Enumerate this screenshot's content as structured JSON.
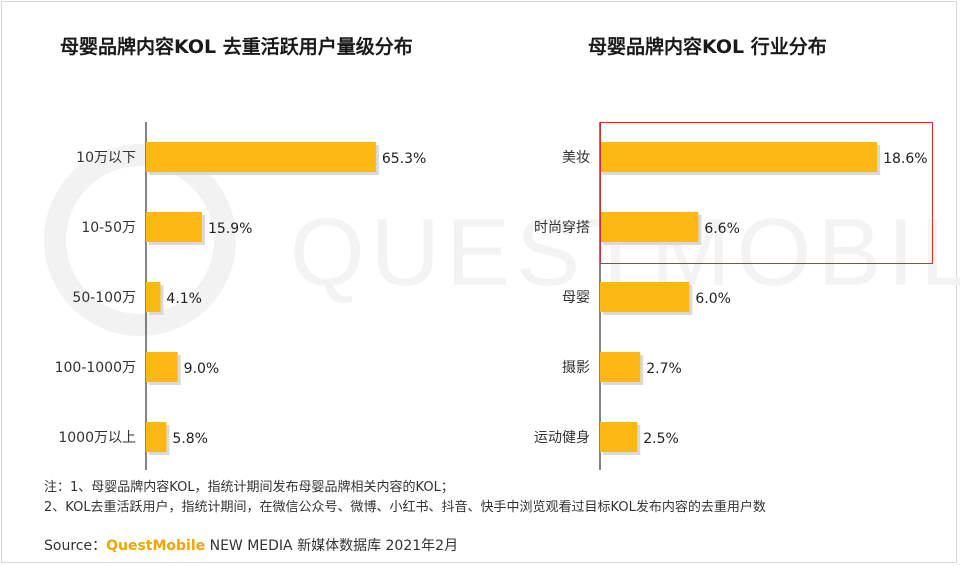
{
  "watermark": "QUESTMOBILE",
  "colors": {
    "bar": "#FDB813",
    "bar_shadow": "#d9d9d9",
    "highlight": "#d62c2c",
    "brand": "#f4a300"
  },
  "chart_data": [
    {
      "type": "bar",
      "orientation": "horizontal",
      "title": "母婴品牌内容KOL 去重活跃用户量级分布",
      "categories": [
        "10万以下",
        "10-50万",
        "50-100万",
        "100-1000万",
        "1000万以上"
      ],
      "values": [
        65.3,
        15.9,
        4.1,
        9.0,
        5.8
      ],
      "labels": [
        "65.3%",
        "15.9%",
        "4.1%",
        "9.0%",
        "5.8%"
      ],
      "unit": "%"
    },
    {
      "type": "bar",
      "orientation": "horizontal",
      "title": "母婴品牌内容KOL 行业分布",
      "categories": [
        "美妆",
        "时尚穿搭",
        "母婴",
        "摄影",
        "运动健身"
      ],
      "values": [
        18.6,
        6.6,
        6.0,
        2.7,
        2.5
      ],
      "labels": [
        "18.6%",
        "6.6%",
        "6.0%",
        "2.7%",
        "2.5%"
      ],
      "unit": "%",
      "highlighted_categories": [
        "美妆",
        "时尚穿搭"
      ]
    }
  ],
  "notes": {
    "line1": "注：1、母婴品牌内容KOL，指统计期间发布母婴品牌相关内容的KOL；",
    "line2": "2、KOL去重活跃用户，指统计期间，在微信公众号、微博、小红书、抖音、快手中浏览观看过目标KOL发布内容的去重用户数"
  },
  "source": {
    "prefix": "Source：",
    "brand": "QuestMobile",
    "rest": " NEW MEDIA 新媒体数据库 2021年2月"
  }
}
